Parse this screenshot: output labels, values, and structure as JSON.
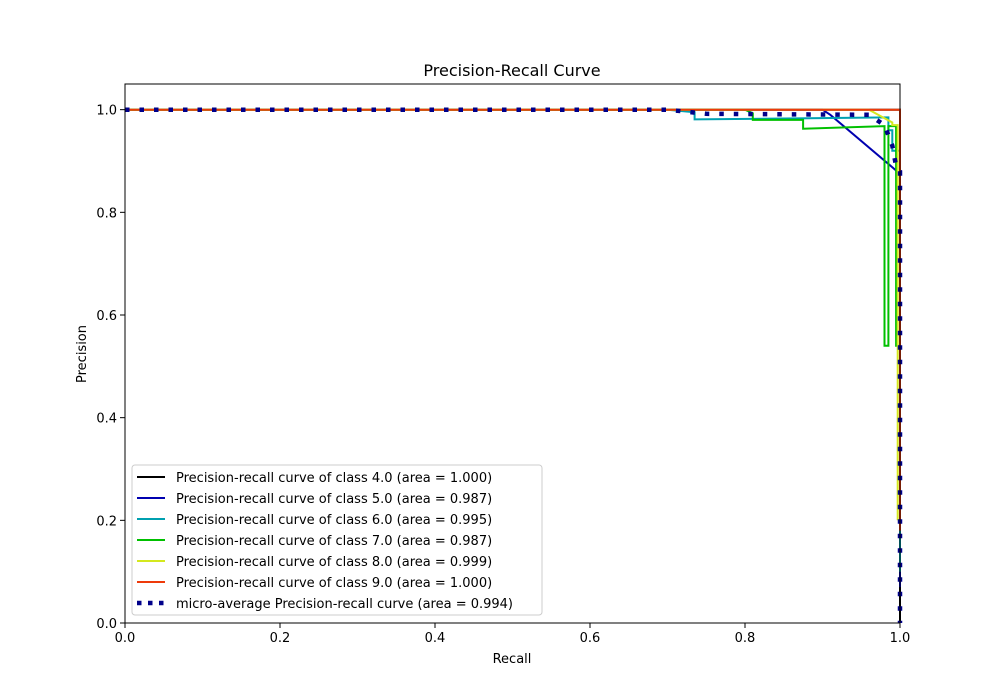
{
  "chart_data": {
    "type": "line",
    "title": "Precision-Recall Curve",
    "xlabel": "Recall",
    "ylabel": "Precision",
    "xlim": [
      0.0,
      1.0
    ],
    "ylim": [
      0.0,
      1.05
    ],
    "xticks": [
      "0.0",
      "0.2",
      "0.4",
      "0.6",
      "0.8",
      "1.0"
    ],
    "yticks": [
      "0.0",
      "0.2",
      "0.4",
      "0.6",
      "0.8",
      "1.0"
    ],
    "grid": false,
    "legend_position": "lower-left",
    "series": [
      {
        "name": "Precision-recall curve of class 4.0 (area = 1.000)",
        "color": "#000000",
        "style": "solid",
        "x": [
          0.0,
          1.0,
          1.0
        ],
        "y": [
          1.0,
          1.0,
          0.0
        ]
      },
      {
        "name": "Precision-recall curve of class 5.0 (area = 0.987)",
        "color": "#0000b0",
        "style": "solid",
        "x": [
          0.0,
          0.9,
          0.91,
          1.0,
          1.0
        ],
        "y": [
          1.0,
          1.0,
          0.99,
          0.875,
          0.07
        ]
      },
      {
        "name": "Precision-recall curve of class 6.0 (area = 0.995)",
        "color": "#00a0b0",
        "style": "solid",
        "x": [
          0.0,
          0.7,
          0.735,
          0.735,
          0.985,
          0.985,
          0.99,
          0.99,
          1.0,
          1.0
        ],
        "y": [
          1.0,
          1.0,
          0.995,
          0.981,
          0.985,
          0.96,
          0.96,
          0.92,
          0.92,
          0.1
        ]
      },
      {
        "name": "Precision-recall curve of class 7.0 (area = 0.987)",
        "color": "#00c000",
        "style": "solid",
        "x": [
          0.0,
          0.8,
          0.81,
          0.81,
          0.875,
          0.875,
          0.98,
          0.98,
          0.985,
          0.985,
          0.995,
          0.995,
          1.0,
          1.0
        ],
        "y": [
          1.0,
          1.0,
          0.993,
          0.98,
          0.98,
          0.963,
          0.968,
          0.54,
          0.54,
          0.968,
          0.968,
          0.54,
          0.54,
          0.2
        ]
      },
      {
        "name": "Precision-recall curve of class 8.0 (area = 0.999)",
        "color": "#d4e81e",
        "style": "solid",
        "x": [
          0.0,
          0.96,
          0.99,
          0.99,
          0.997,
          0.997
        ],
        "y": [
          1.0,
          1.0,
          0.975,
          0.97,
          0.97,
          0.2
        ]
      },
      {
        "name": "Precision-recall curve of class 9.0 (area = 1.000)",
        "color": "#ee3a0a",
        "style": "solid",
        "x": [
          0.0,
          1.0,
          1.0
        ],
        "y": [
          1.0,
          1.0,
          0.18
        ]
      },
      {
        "name": "micro-average Precision-recall curve (area = 0.994)",
        "color": "#00008a",
        "style": "dotted",
        "x": [
          0.0,
          0.7,
          0.75,
          0.96,
          0.98,
          0.99,
          0.995,
          1.0,
          1.0
        ],
        "y": [
          1.0,
          1.0,
          0.992,
          0.99,
          0.97,
          0.93,
          0.89,
          0.88,
          0.0
        ]
      }
    ]
  }
}
